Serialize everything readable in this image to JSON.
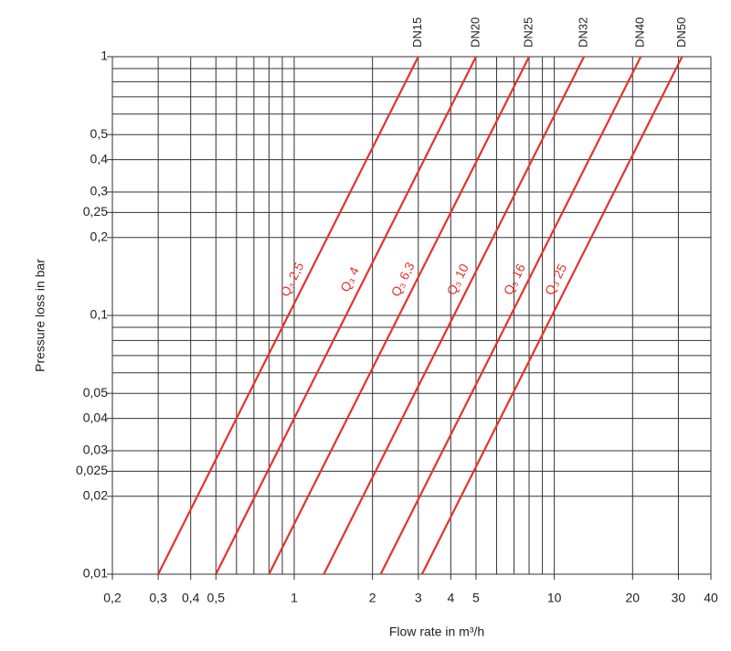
{
  "chart_data": {
    "type": "line",
    "ylabel": "Pressure loss in bar",
    "xlabel": "Flow rate in m³/h",
    "xscale": "log",
    "yscale": "log",
    "grid": true,
    "xlim": [
      0.2,
      40
    ],
    "ylim": [
      0.01,
      1
    ],
    "xticks": [
      {
        "value": 0.2,
        "label": "0,2"
      },
      {
        "value": 0.3,
        "label": "0,3"
      },
      {
        "value": 0.4,
        "label": "0,4"
      },
      {
        "value": 0.5,
        "label": "0,5"
      },
      1,
      2,
      3,
      4,
      5,
      10,
      20,
      30,
      40
    ],
    "xminor": [
      0.6,
      0.7,
      0.8,
      0.9,
      6,
      7,
      8,
      9
    ],
    "yticks": [
      {
        "value": 0.01,
        "label": "0,01"
      },
      {
        "value": 0.02,
        "label": "0,02"
      },
      {
        "value": 0.025,
        "label": "0,025"
      },
      {
        "value": 0.03,
        "label": "0,03"
      },
      {
        "value": 0.04,
        "label": "0,04"
      },
      {
        "value": 0.05,
        "label": "0,05"
      },
      {
        "value": 0.1,
        "label": "0,1"
      },
      {
        "value": 0.2,
        "label": "0,2"
      },
      {
        "value": 0.25,
        "label": "0,25"
      },
      {
        "value": 0.3,
        "label": "0,3"
      },
      {
        "value": 0.4,
        "label": "0,4"
      },
      {
        "value": 0.5,
        "label": "0,5"
      },
      1
    ],
    "yminor": [
      0.06,
      0.07,
      0.08,
      0.09,
      0.6,
      0.7,
      0.8,
      0.9
    ],
    "color": "#e5322d",
    "series": [
      {
        "name": "DN15",
        "label": "Q₃ 2,5",
        "x": [
          0.3,
          3
        ],
        "values": [
          0.01,
          1
        ]
      },
      {
        "name": "DN20",
        "label": "Q₃ 4",
        "x": [
          0.5,
          5
        ],
        "values": [
          0.01,
          1
        ]
      },
      {
        "name": "DN25",
        "label": "Q₃ 6,3",
        "x": [
          0.8,
          8
        ],
        "values": [
          0.01,
          1
        ]
      },
      {
        "name": "DN32",
        "label": "Q₃ 10",
        "x": [
          1.3,
          13
        ],
        "values": [
          0.01,
          1
        ]
      },
      {
        "name": "DN40",
        "label": "Q₃ 16",
        "x": [
          2.15,
          21.5
        ],
        "values": [
          0.01,
          1
        ]
      },
      {
        "name": "DN50",
        "label": "Q₃ 25",
        "x": [
          3.1,
          31
        ],
        "values": [
          0.01,
          1
        ]
      }
    ]
  }
}
